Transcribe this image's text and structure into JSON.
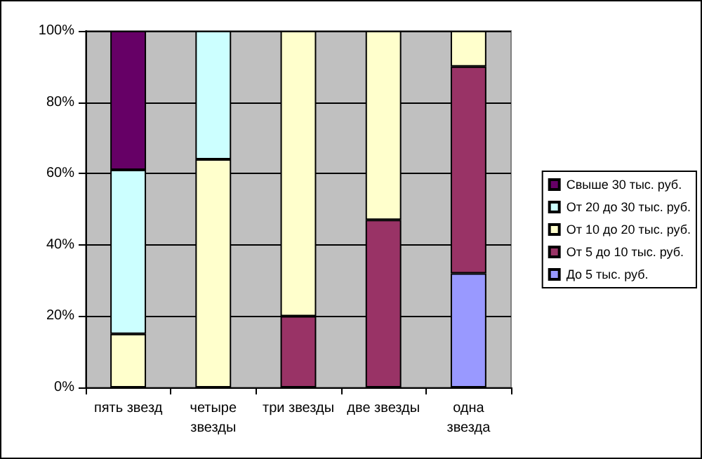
{
  "chart_data": {
    "type": "bar",
    "stacked": true,
    "categories": [
      "пять звезд",
      "четыре звезды",
      "три звезды",
      "две звезды",
      "одна звезда"
    ],
    "series": [
      {
        "name": "До 5 тыс. руб.",
        "color": "#9999ff",
        "values": [
          null,
          null,
          null,
          null,
          32
        ]
      },
      {
        "name": "От 5 до 10 тыс. руб.",
        "color": "#993366",
        "values": [
          null,
          null,
          20,
          47,
          58
        ]
      },
      {
        "name": "От 10 до 20 тыс. руб.",
        "color": "#ffffcc",
        "values": [
          15,
          64,
          80,
          53,
          10
        ]
      },
      {
        "name": "От 20 до 30 тыс. руб.",
        "color": "#ccffff",
        "values": [
          46,
          36,
          null,
          null,
          null
        ]
      },
      {
        "name": "Свыше 30 тыс. руб.",
        "color": "#660066",
        "values": [
          39,
          null,
          null,
          null,
          null
        ]
      }
    ],
    "ylim": [
      0,
      100
    ],
    "yticks": [
      {
        "value": 0,
        "label": "0%"
      },
      {
        "value": 20,
        "label": "20%"
      },
      {
        "value": 40,
        "label": "40%"
      },
      {
        "value": 60,
        "label": "60%"
      },
      {
        "value": 80,
        "label": "80%"
      },
      {
        "value": 100,
        "label": "100%"
      }
    ],
    "grid": "y",
    "legend": "right"
  }
}
